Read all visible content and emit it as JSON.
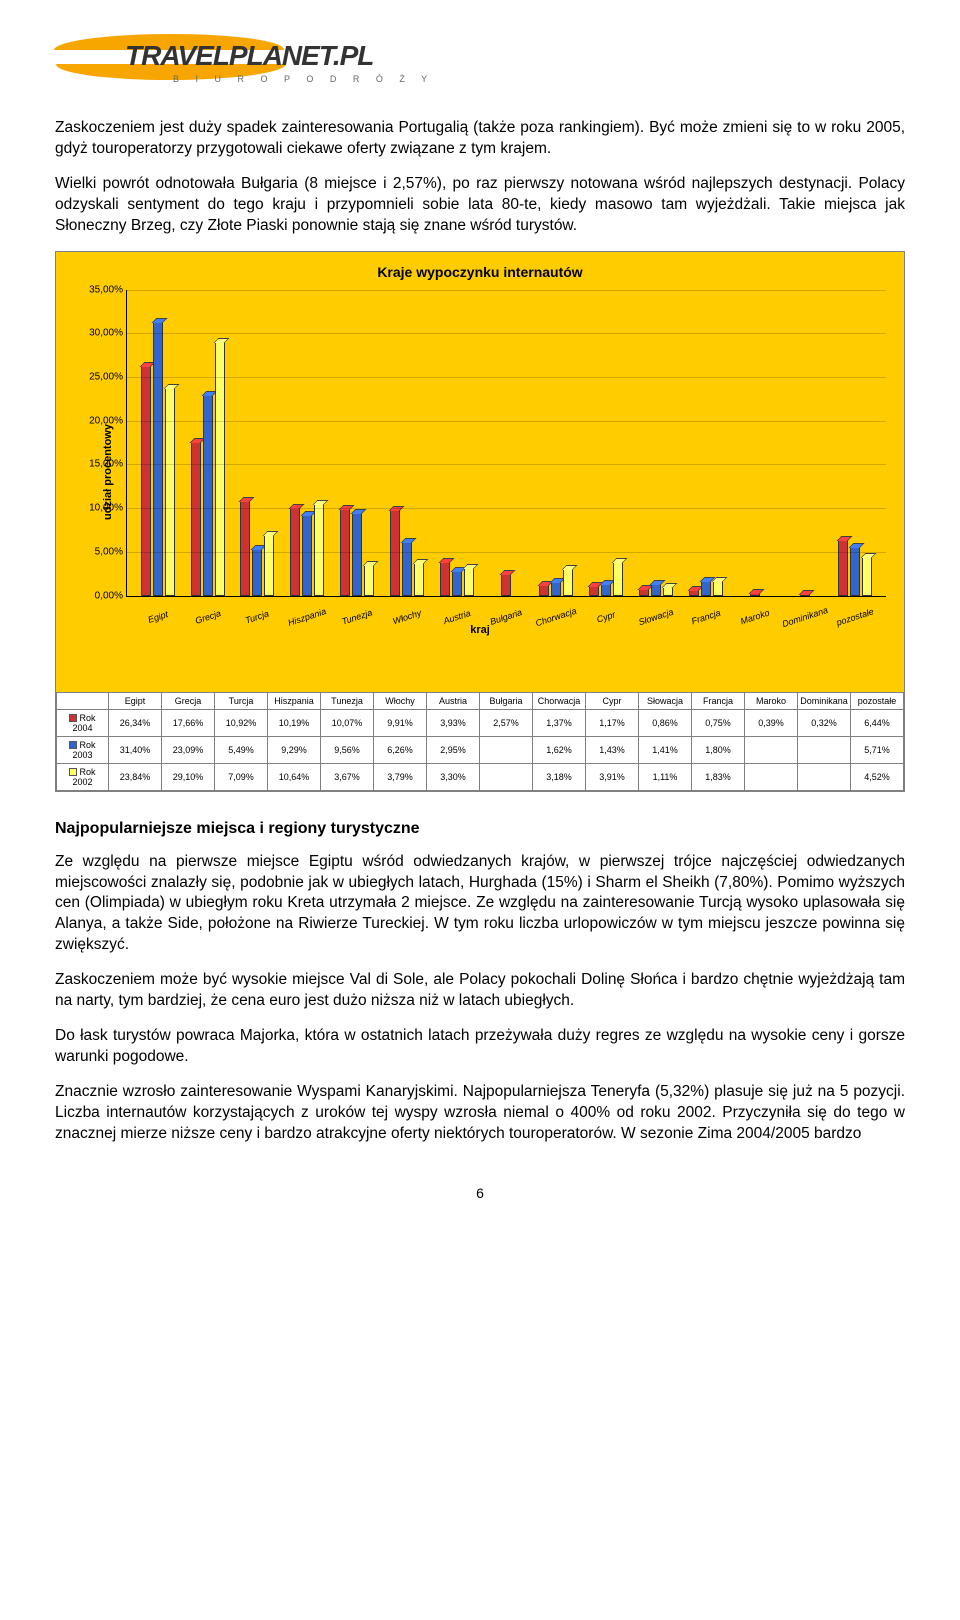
{
  "logo": {
    "main": "TRAVELPLANET.PL",
    "sub": "B I U R O   P O D R Ó Ż Y"
  },
  "paragraphs_top": [
    "Zaskoczeniem jest duży spadek zainteresowania Portugalią (także poza rankingiem). Być może zmieni się to w roku 2005, gdyż touroperatorzy przygotowali ciekawe oferty związane z tym krajem.",
    "Wielki powrót odnotowała Bułgaria (8 miejsce i 2,57%), po raz pierwszy notowana wśród najlepszych destynacji. Polacy odzyskali sentyment do tego kraju i przypomnieli sobie lata 80-te, kiedy masowo tam wyjeżdżali. Takie miejsca jak Słoneczny Brzeg, czy Złote Piaski ponownie stają się znane wśród turystów."
  ],
  "chart": {
    "title": "Kraje wypoczynku internautów",
    "ylabel": "udział procentowy",
    "xlabel": "kraj",
    "ylim": [
      0,
      35
    ],
    "ytick_step": 5,
    "ytick_format": ",00%",
    "background_color": "#ffcc00",
    "grid_color": "rgba(0,0,0,0.18)",
    "categories": [
      "Egipt",
      "Grecja",
      "Turcja",
      "Hiszpania",
      "Tunezja",
      "Włochy",
      "Austria",
      "Bułgaria",
      "Chorwacja",
      "Cypr",
      "Słowacja",
      "Francja",
      "Maroko",
      "Dominikana",
      "pozostałe"
    ],
    "series": [
      {
        "name": "Rok 2004",
        "color": "#cc3333",
        "values": [
          26.34,
          17.66,
          10.92,
          10.19,
          10.07,
          9.91,
          3.93,
          2.57,
          1.37,
          1.17,
          0.86,
          0.75,
          0.39,
          0.32,
          6.44
        ]
      },
      {
        "name": "Rok 2003",
        "color": "#3366cc",
        "values": [
          31.4,
          23.09,
          5.49,
          9.29,
          9.56,
          6.26,
          2.95,
          null,
          1.62,
          1.43,
          1.41,
          1.8,
          null,
          null,
          5.71
        ]
      },
      {
        "name": "Rok 2002",
        "color": "#ffff66",
        "values": [
          23.84,
          29.1,
          7.09,
          10.64,
          3.67,
          3.79,
          3.3,
          null,
          3.18,
          3.91,
          1.11,
          1.83,
          null,
          null,
          4.52
        ]
      }
    ],
    "table": {
      "columns": [
        "",
        "Egipt",
        "Grecja",
        "Turcja",
        "Hiszpania",
        "Tunezja",
        "Włochy",
        "Austria",
        "Bułgaria",
        "Chorwacja",
        "Cypr",
        "Słowacja",
        "Francja",
        "Maroko",
        "Dominikana",
        "pozostałe"
      ],
      "rows": [
        [
          "Rok 2004",
          "26,34%",
          "17,66%",
          "10,92%",
          "10,19%",
          "10,07%",
          "9,91%",
          "3,93%",
          "2,57%",
          "1,37%",
          "1,17%",
          "0,86%",
          "0,75%",
          "0,39%",
          "0,32%",
          "6,44%"
        ],
        [
          "Rok 2003",
          "31,40%",
          "23,09%",
          "5,49%",
          "9,29%",
          "9,56%",
          "6,26%",
          "2,95%",
          "",
          "1,62%",
          "1,43%",
          "1,41%",
          "1,80%",
          "",
          "",
          "5,71%"
        ],
        [
          "Rok 2002",
          "23,84%",
          "29,10%",
          "7,09%",
          "10,64%",
          "3,67%",
          "3,79%",
          "3,30%",
          "",
          "3,18%",
          "3,91%",
          "1,11%",
          "1,83%",
          "",
          "",
          "4,52%"
        ]
      ],
      "row_colors": [
        "#cc3333",
        "#3366cc",
        "#ffff66"
      ]
    }
  },
  "heading": "Najpopularniejsze miejsca i regiony turystyczne",
  "paragraphs_bottom": [
    "Ze względu na pierwsze miejsce Egiptu wśród odwiedzanych krajów, w pierwszej trójce najczęściej odwiedzanych miejscowości znalazły się, podobnie jak w ubiegłych latach, Hurghada (15%) i Sharm el Sheikh (7,80%). Pomimo wyższych cen (Olimpiada) w ubiegłym roku Kreta utrzymała 2 miejsce. Ze względu na zainteresowanie Turcją wysoko uplasowała się Alanya, a także Side, położone na Riwierze Tureckiej. W tym roku liczba urlopowiczów w tym miejscu jeszcze powinna się zwiększyć.",
    "Zaskoczeniem może być wysokie miejsce Val di Sole, ale Polacy pokochali Dolinę Słońca i bardzo chętnie wyjeżdżają tam na narty, tym bardziej, że cena euro jest dużo niższa niż w latach ubiegłych.",
    "Do łask turystów powraca Majorka, która w ostatnich latach przeżywała duży regres ze względu na wysokie ceny i gorsze warunki pogodowe.",
    "Znacznie wzrosło zainteresowanie Wyspami Kanaryjskimi. Najpopularniejsza Teneryfa (5,32%) plasuje się już na 5 pozycji. Liczba internautów korzystających z uroków tej wyspy wzrosła niemal o 400% od roku 2002. Przyczyniła się do tego w znacznej mierze niższe ceny i bardzo atrakcyjne oferty niektórych touroperatorów. W sezonie Zima 2004/2005 bardzo"
  ],
  "page_number": "6"
}
